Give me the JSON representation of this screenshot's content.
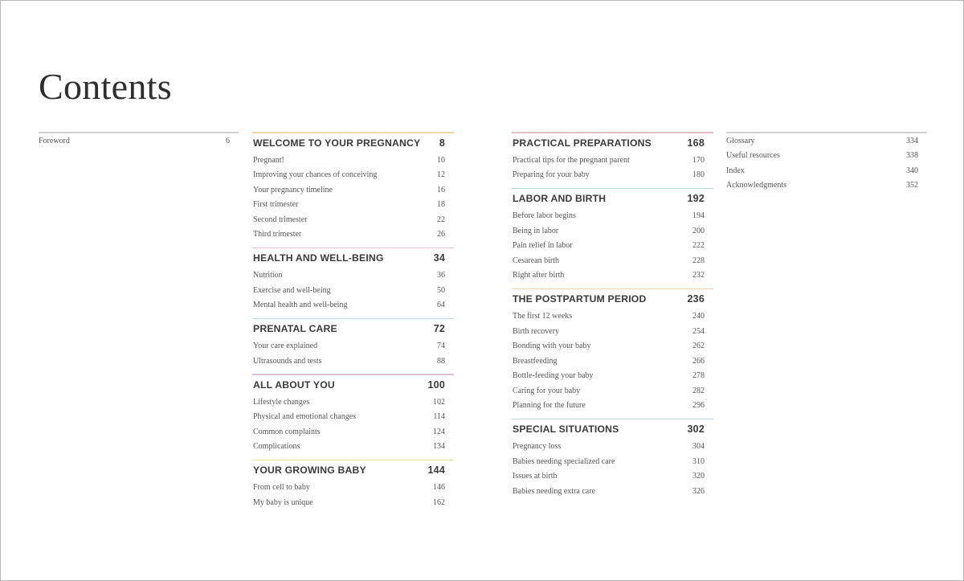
{
  "title": "Contents",
  "front_matter": [
    {
      "label": "Foreword",
      "page": "6"
    }
  ],
  "sections_left": [
    {
      "heading": "WELCOME TO YOUR PREGNANCY",
      "page": "8",
      "color": "#e9d9a6",
      "items": [
        {
          "label": "Pregnant!",
          "page": "10"
        },
        {
          "label": "Improving your chances of conceiving",
          "page": "12"
        },
        {
          "label": "Your pregnancy timeline",
          "page": "16"
        },
        {
          "label": "First trimester",
          "page": "18"
        },
        {
          "label": "Second trimester",
          "page": "22"
        },
        {
          "label": "Third trimester",
          "page": "26"
        }
      ]
    },
    {
      "heading": "HEALTH AND WELL-BEING",
      "page": "34",
      "color": "#e4bfc5",
      "items": [
        {
          "label": "Nutrition",
          "page": "36"
        },
        {
          "label": "Exercise and well-being",
          "page": "50"
        },
        {
          "label": "Mental health and well-being",
          "page": "64"
        }
      ]
    },
    {
      "heading": "PRENATAL CARE",
      "page": "72",
      "color": "#b9dbe0",
      "items": [
        {
          "label": "Your care explained",
          "page": "74"
        },
        {
          "label": "Ultrasounds and tests",
          "page": "88"
        }
      ]
    },
    {
      "heading": "ALL ABOUT YOU",
      "page": "100",
      "color": "#dcc4d6",
      "items": [
        {
          "label": "Lifestyle changes",
          "page": "102"
        },
        {
          "label": "Physical and emotional changes",
          "page": "114"
        },
        {
          "label": "Common complaints",
          "page": "124"
        },
        {
          "label": "Complications",
          "page": "134"
        }
      ]
    },
    {
      "heading": "YOUR GROWING BABY",
      "page": "144",
      "color": "#e6e2ad",
      "items": [
        {
          "label": "From cell to baby",
          "page": "146"
        },
        {
          "label": "My baby is unique",
          "page": "162"
        }
      ]
    }
  ],
  "sections_right": [
    {
      "heading": "PRACTICAL PREPARATIONS",
      "page": "168",
      "color": "#e4bfc5",
      "items": [
        {
          "label": "Practical tips for the pregnant parent",
          "page": "170"
        },
        {
          "label": "Preparing for your baby",
          "page": "180"
        }
      ]
    },
    {
      "heading": "LABOR AND BIRTH",
      "page": "192",
      "color": "#b9dbe0",
      "items": [
        {
          "label": "Before labor begins",
          "page": "194"
        },
        {
          "label": "Being in labor",
          "page": "200"
        },
        {
          "label": "Pain relief in labor",
          "page": "222"
        },
        {
          "label": "Cesarean birth",
          "page": "228"
        },
        {
          "label": "Right after birth",
          "page": "232"
        }
      ]
    },
    {
      "heading": "THE POSTPARTUM PERIOD",
      "page": "236",
      "color": "#ecd6b0",
      "items": [
        {
          "label": "The first 12 weeks",
          "page": "240"
        },
        {
          "label": "Birth recovery",
          "page": "254"
        },
        {
          "label": "Bonding with your baby",
          "page": "262"
        },
        {
          "label": "Breastfeeding",
          "page": "266"
        },
        {
          "label": "Bottle-feeding your baby",
          "page": "278"
        },
        {
          "label": "Caring for your baby",
          "page": "282"
        },
        {
          "label": "Planning for the future",
          "page": "296"
        }
      ]
    },
    {
      "heading": "SPECIAL SITUATIONS",
      "page": "302",
      "color": "#b9cfe3",
      "items": [
        {
          "label": "Pregnancy loss",
          "page": "304"
        },
        {
          "label": "Babies needing specialized care",
          "page": "310"
        },
        {
          "label": "Issues at birth",
          "page": "320"
        },
        {
          "label": "Babies needing extra care",
          "page": "326"
        }
      ]
    }
  ],
  "back_matter": [
    {
      "label": "Glossary",
      "page": "334"
    },
    {
      "label": "Useful resources",
      "page": "338"
    },
    {
      "label": "Index",
      "page": "340"
    },
    {
      "label": "Acknowledgments",
      "page": "352"
    }
  ],
  "rule_color": "#cfcfcf"
}
